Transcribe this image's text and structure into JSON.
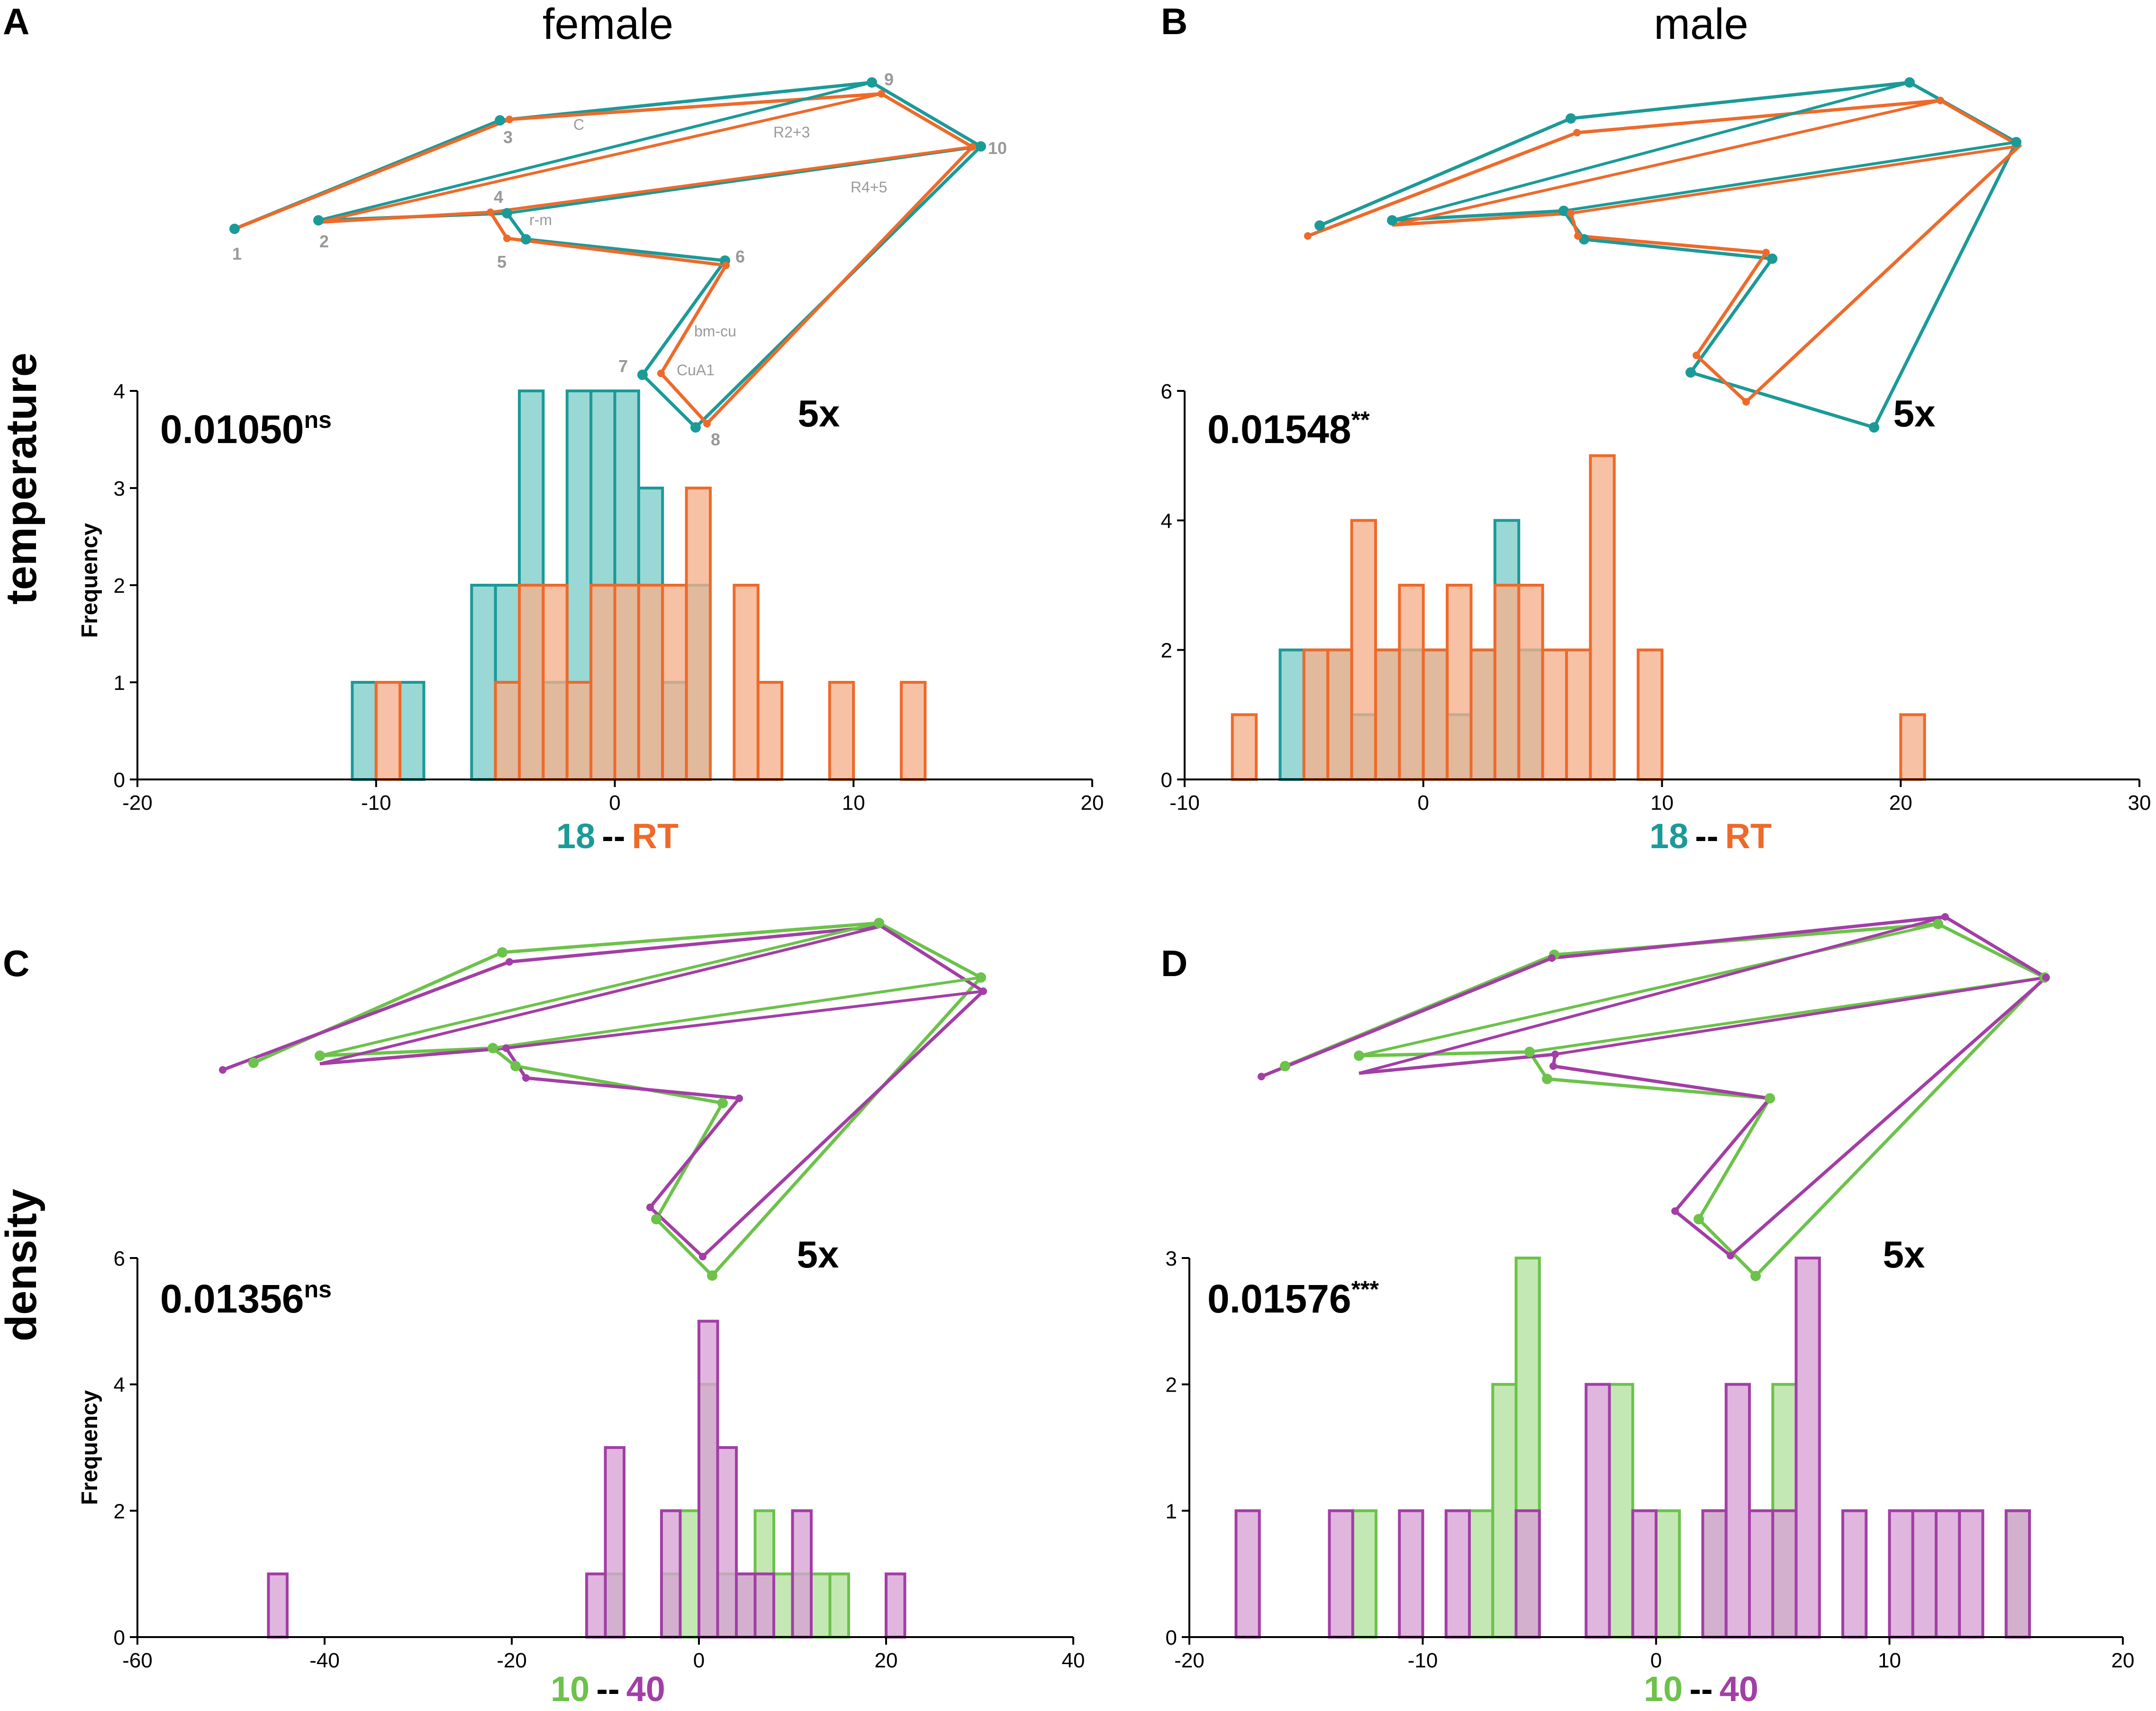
{
  "figure": {
    "columns": [
      "female",
      "male"
    ],
    "rows": [
      "temperature",
      "density"
    ]
  },
  "colors": {
    "teal": "#1b9a98",
    "teal_fill": "#7ecdc9",
    "orange": "#ee6a2a",
    "orange_fill": "#f5b08d",
    "green": "#6cc24a",
    "green_fill": "#b3e29d",
    "purple": "#a23ea6",
    "purple_fill": "#d7a2d6"
  },
  "panels": [
    {
      "letter": "A",
      "stat_value": "0.01050",
      "stat_sig": "ns",
      "scale": "5x",
      "ylabel": "Frequency",
      "legend": {
        "a": "18",
        "sep": "--",
        "b": "RT"
      },
      "landmark_labels": [
        "1",
        "2",
        "3",
        "4",
        "5",
        "6",
        "7",
        "8",
        "9",
        "10"
      ],
      "vein_labels": [
        "C",
        "R2+3",
        "R4+5",
        "r-m",
        "bm-cu",
        "CuA1"
      ]
    },
    {
      "letter": "B",
      "stat_value": "0.01548",
      "stat_sig": "**",
      "scale": "5x",
      "ylabel": "",
      "legend": {
        "a": "18",
        "sep": "--",
        "b": "RT"
      }
    },
    {
      "letter": "C",
      "stat_value": "0.01356",
      "stat_sig": "ns",
      "scale": "5x",
      "ylabel": "Frequency",
      "legend": {
        "a": "10",
        "sep": "--",
        "b": "40"
      }
    },
    {
      "letter": "D",
      "stat_value": "0.01576",
      "stat_sig": "***",
      "scale": "5x",
      "ylabel": "",
      "legend": {
        "a": "10",
        "sep": "--",
        "b": "40"
      }
    }
  ],
  "chart_data": [
    {
      "type": "bar",
      "title": "A female temperature",
      "xlabel": "18 -- RT",
      "ylabel": "Frequency",
      "xlim": [
        -20,
        20
      ],
      "ylim": [
        0,
        4
      ],
      "xticks": [
        -20,
        -10,
        0,
        10,
        20
      ],
      "yticks": [
        0,
        1,
        2,
        3,
        4
      ],
      "bin_width": 1,
      "series": [
        {
          "name": "18",
          "bin_left": [
            -11,
            -9,
            -6,
            -5,
            -4,
            -3,
            -2,
            -1,
            0,
            1,
            2,
            3
          ],
          "values": [
            1,
            1,
            2,
            2,
            4,
            1,
            4,
            4,
            4,
            3,
            1,
            2
          ]
        },
        {
          "name": "RT",
          "bin_left": [
            -10,
            -5,
            -4,
            -3,
            -2,
            -1,
            0,
            1,
            2,
            3,
            5,
            6,
            9,
            12
          ],
          "values": [
            1,
            1,
            2,
            2,
            1,
            2,
            2,
            2,
            2,
            3,
            2,
            1,
            1,
            1
          ]
        }
      ]
    },
    {
      "type": "bar",
      "title": "B male temperature",
      "xlabel": "18 -- RT",
      "ylabel": "",
      "xlim": [
        -10,
        30
      ],
      "ylim": [
        0,
        6
      ],
      "xticks": [
        -10,
        0,
        10,
        20,
        30
      ],
      "yticks": [
        0,
        2,
        4,
        6
      ],
      "bin_width": 1,
      "series": [
        {
          "name": "18",
          "bin_left": [
            -6,
            -5,
            -4,
            -3,
            -2,
            -1,
            0,
            1,
            2,
            3,
            4
          ],
          "values": [
            2,
            2,
            2,
            1,
            2,
            2,
            2,
            1,
            2,
            4,
            2
          ]
        },
        {
          "name": "RT",
          "bin_left": [
            -8,
            -5,
            -4,
            -3,
            -2,
            -1,
            0,
            1,
            2,
            3,
            4,
            5,
            6,
            7,
            9,
            20
          ],
          "values": [
            1,
            2,
            2,
            4,
            2,
            3,
            2,
            3,
            2,
            3,
            3,
            2,
            2,
            5,
            2,
            1
          ]
        }
      ]
    },
    {
      "type": "bar",
      "title": "C female density",
      "xlabel": "10 -- 40",
      "ylabel": "Frequency",
      "xlim": [
        -60,
        40
      ],
      "ylim": [
        0,
        6
      ],
      "xticks": [
        -60,
        -40,
        -20,
        0,
        20,
        40
      ],
      "yticks": [
        0,
        2,
        4,
        6
      ],
      "bin_width": 2,
      "series": [
        {
          "name": "10",
          "bin_left": [
            -10,
            -4,
            -2,
            0,
            2,
            4,
            6,
            8,
            10,
            12,
            14
          ],
          "values": [
            1,
            1,
            2,
            4,
            1,
            1,
            2,
            1,
            1,
            1,
            1
          ]
        },
        {
          "name": "40",
          "bin_left": [
            -46,
            -12,
            -10,
            -4,
            0,
            2,
            4,
            6,
            10,
            20
          ],
          "values": [
            1,
            1,
            3,
            2,
            5,
            3,
            1,
            1,
            2,
            1
          ]
        }
      ]
    },
    {
      "type": "bar",
      "title": "D male density",
      "xlabel": "10 -- 40",
      "ylabel": "",
      "xlim": [
        -20,
        20
      ],
      "ylim": [
        0,
        3
      ],
      "xticks": [
        -20,
        -10,
        0,
        10,
        20
      ],
      "yticks": [
        0,
        1,
        2,
        3
      ],
      "bin_width": 1,
      "series": [
        {
          "name": "10",
          "bin_left": [
            -13,
            -8,
            -7,
            -6,
            -2,
            0,
            2,
            5,
            15
          ],
          "values": [
            1,
            1,
            2,
            3,
            2,
            1,
            1,
            2,
            1
          ]
        },
        {
          "name": "40",
          "bin_left": [
            -18,
            -14,
            -11,
            -9,
            -6,
            -3,
            -1,
            2,
            3,
            4,
            5,
            6,
            8,
            10,
            11,
            12,
            13,
            15
          ],
          "values": [
            1,
            1,
            1,
            1,
            1,
            2,
            1,
            1,
            2,
            1,
            1,
            3,
            1,
            1,
            1,
            1,
            1,
            1
          ]
        }
      ]
    }
  ]
}
